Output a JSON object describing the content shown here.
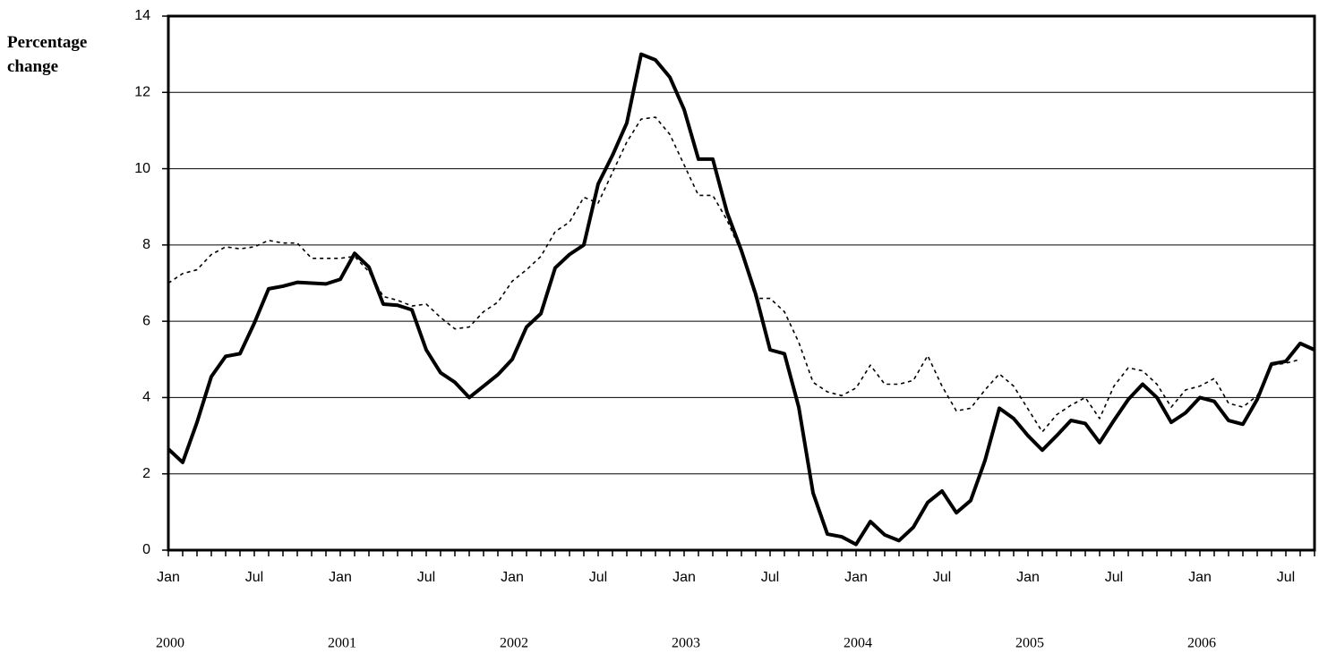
{
  "chart_data": {
    "type": "line",
    "y_label": "Percentage change",
    "categories": [
      "Jan",
      null,
      null,
      null,
      null,
      null,
      "Jul",
      null,
      null,
      null,
      null,
      null,
      "Jan",
      null,
      null,
      null,
      null,
      null,
      "Jul",
      null,
      null,
      null,
      null,
      null,
      "Jan",
      null,
      null,
      null,
      null,
      null,
      "Jul",
      null,
      null,
      null,
      null,
      null,
      "Jan",
      null,
      null,
      null,
      null,
      null,
      "Jul",
      null,
      null,
      null,
      null,
      null,
      "Jan",
      null,
      null,
      null,
      null,
      null,
      "Jul",
      null,
      null,
      null,
      null,
      null,
      "Jan",
      null,
      null,
      null,
      null,
      null,
      "Jul",
      null,
      null,
      null,
      null,
      null,
      "Jan",
      null,
      null,
      null,
      null,
      null,
      "Jul",
      null,
      null
    ],
    "years": [
      "2000",
      "2001",
      "2002",
      "2003",
      "2004",
      "2005",
      "2006"
    ],
    "series": [
      {
        "color": "#000000",
        "style": "solid",
        "values": [
          2.65,
          2.3,
          3.35,
          4.55,
          5.08,
          5.15,
          5.95,
          6.85,
          6.92,
          7.02,
          7.0,
          6.98,
          7.1,
          7.78,
          7.42,
          6.45,
          6.42,
          6.3,
          5.25,
          4.65,
          4.4,
          4.0,
          4.3,
          4.6,
          5.0,
          5.85,
          6.2,
          7.4,
          7.75,
          8.0,
          9.6,
          10.35,
          11.2,
          13.0,
          12.85,
          12.4,
          11.55,
          10.25,
          10.25,
          8.85,
          7.85,
          6.7,
          5.25,
          5.15,
          3.75,
          1.5,
          0.42,
          0.35,
          0.15,
          0.75,
          0.4,
          0.25,
          0.6,
          1.25,
          1.55,
          0.98,
          1.3,
          2.35,
          3.72,
          3.45,
          3.0,
          2.62,
          3.0,
          3.4,
          3.32,
          2.82,
          3.4,
          3.95,
          4.35,
          4.0,
          3.35,
          3.6,
          4.0,
          3.9,
          3.4,
          3.3,
          3.95,
          4.88,
          4.95,
          5.42,
          5.25
        ]
      },
      {
        "color": "#000000",
        "style": "dotted",
        "values": [
          7.0,
          7.25,
          7.35,
          7.75,
          7.95,
          7.9,
          7.95,
          8.12,
          8.05,
          8.05,
          7.65,
          7.65,
          7.65,
          7.7,
          7.3,
          6.65,
          6.55,
          6.4,
          6.45,
          6.1,
          5.8,
          5.85,
          6.25,
          6.5,
          7.05,
          7.35,
          7.7,
          8.35,
          8.6,
          9.25,
          9.1,
          9.9,
          10.7,
          11.3,
          11.35,
          10.9,
          10.1,
          9.3,
          9.3,
          8.65,
          7.8,
          6.6,
          6.6,
          6.25,
          5.45,
          4.4,
          4.15,
          4.05,
          4.25,
          4.85,
          4.35,
          4.35,
          4.45,
          5.1,
          4.3,
          3.65,
          3.72,
          4.2,
          4.62,
          4.3,
          3.7,
          3.1,
          3.55,
          3.8,
          4.0,
          3.45,
          4.3,
          4.78,
          4.7,
          4.35,
          3.75,
          4.2,
          4.3,
          4.5,
          3.85,
          3.75,
          4.05,
          4.85,
          4.9,
          5.0,
          null
        ]
      }
    ],
    "ylim": [
      0,
      14
    ],
    "yticks": [
      0,
      2,
      4,
      6,
      8,
      10,
      12,
      14
    ],
    "grid": true
  }
}
